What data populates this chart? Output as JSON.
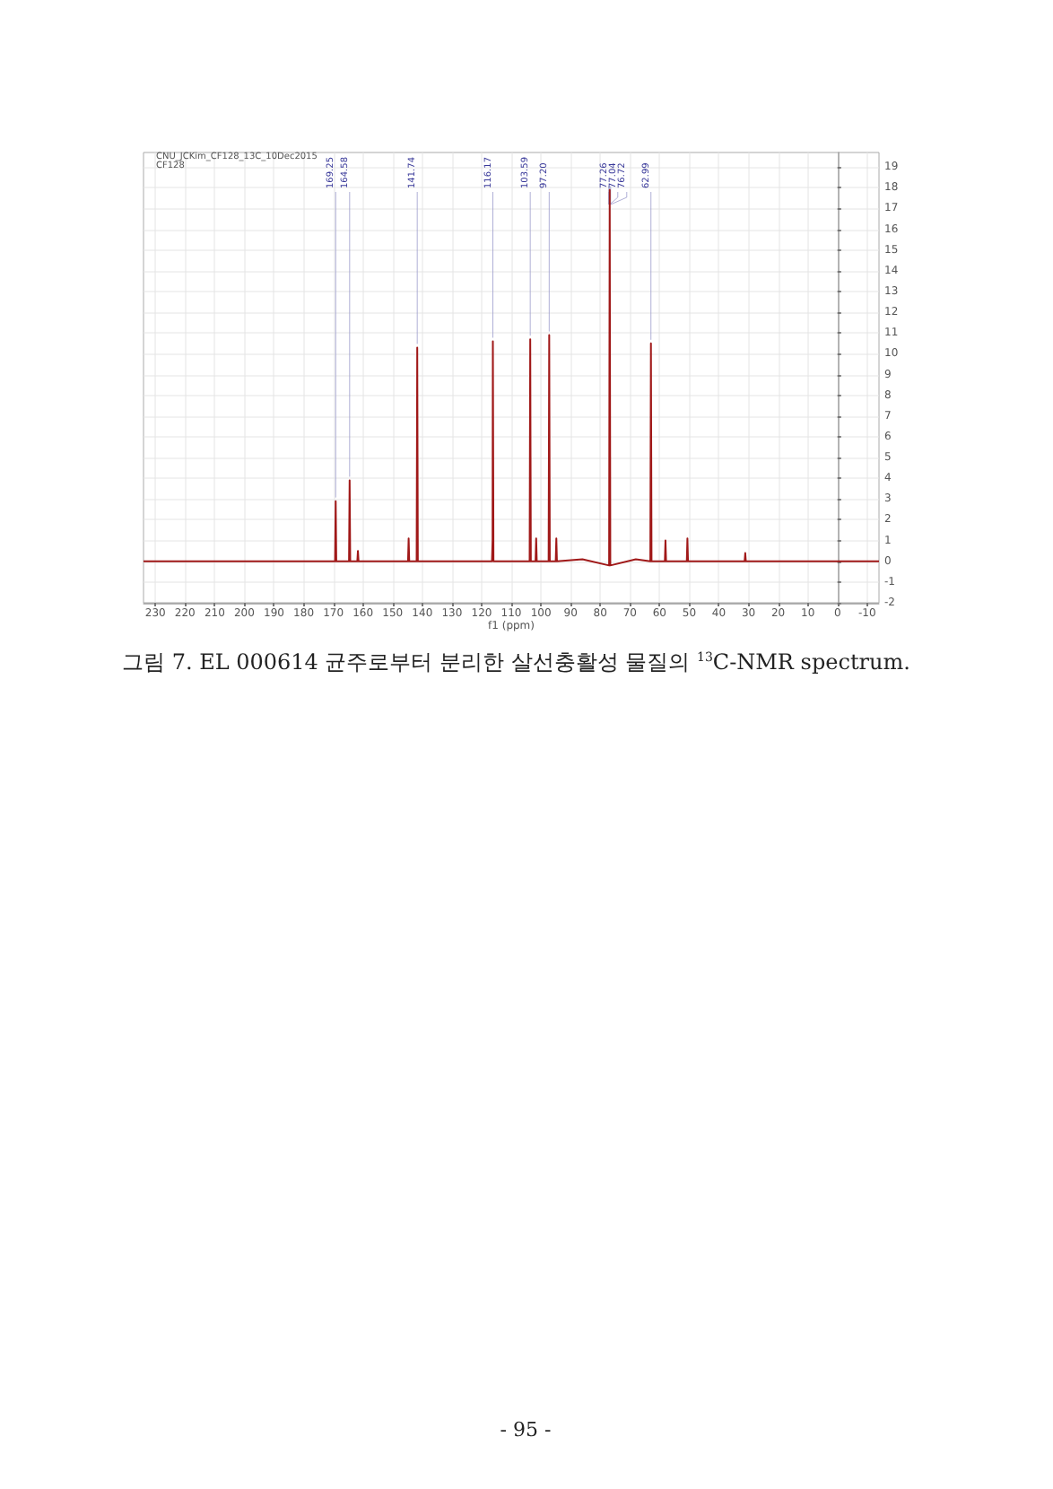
{
  "chart_data": {
    "type": "line",
    "title": "CNU_JCKim_CF128_13C_10Dec2015",
    "subtitle": "CF128",
    "xlabel": "f1 (ppm)",
    "annotations": [
      {
        "text": "169.25",
        "x": 169.2,
        "y": 2.9
      },
      {
        "text": "164.58",
        "x": 164.5,
        "y": 3.9
      },
      {
        "text": "141.74",
        "x": 141.7,
        "y": 10.3
      },
      {
        "text": "116.17",
        "x": 116.2,
        "y": 10.6
      },
      {
        "text": "103.59",
        "x": 103.6,
        "y": 10.7
      },
      {
        "text": "97.20",
        "x": 97.2,
        "y": 10.9
      },
      {
        "text": "77.26",
        "x": 77.1,
        "y": 17.9
      },
      {
        "text": "77.04",
        "x": 76.8,
        "y": 17.9
      },
      {
        "text": "76.72",
        "x": 76.5,
        "y": 17.9
      },
      {
        "text": "62.99",
        "x": 62.9,
        "y": 10.5
      },
      "그림 7. EL 000614 균주로부터 분리한 살선충활성 물질의 $^{13}$C-NMR spectrum.",
      "- 95 -"
    ],
    "x": [
      234,
      200,
      169.4,
      169.2,
      169.0,
      164.7,
      164.5,
      164.3,
      161.9,
      161.7,
      161.5,
      144.8,
      144.6,
      144.4,
      141.9,
      141.7,
      141.5,
      116.5,
      116.3,
      116.2,
      116.0,
      103.8,
      103.6,
      103.4,
      101.8,
      101.6,
      101.4,
      97.4,
      97.2,
      97.0,
      95.0,
      94.8,
      94.6,
      86,
      77.0,
      76.8,
      76.6,
      68,
      63.1,
      62.9,
      62.7,
      58.2,
      58.0,
      57.8,
      50.8,
      50.6,
      50.4,
      31.3,
      31.1,
      30.9,
      -14
    ],
    "series": [
      {
        "color": "#a01818",
        "values": [
          0,
          0,
          0,
          2.9,
          0,
          0,
          3.9,
          0,
          0,
          0.5,
          0,
          0,
          1.1,
          0,
          0,
          10.3,
          0,
          0,
          1.0,
          10.6,
          0,
          0,
          10.7,
          0,
          0,
          1.1,
          0,
          0,
          10.9,
          0,
          0,
          1.1,
          0,
          0.1,
          -0.2,
          17.9,
          -0.2,
          0.1,
          0,
          10.5,
          0,
          0,
          1.0,
          0,
          0,
          1.1,
          0,
          0,
          0.4,
          0,
          0
        ]
      }
    ],
    "xlim": [
      234,
      -14
    ],
    "xticks": [
      230,
      220,
      210,
      200,
      190,
      180,
      170,
      160,
      150,
      140,
      130,
      120,
      110,
      100,
      90,
      80,
      70,
      60,
      50,
      40,
      30,
      20,
      10,
      0,
      -10
    ],
    "ylim": [
      -2,
      19.7
    ],
    "yticks": [
      -2,
      -1,
      0,
      1,
      2,
      3,
      4,
      5,
      6,
      7,
      8,
      9,
      10,
      11,
      12,
      13,
      14,
      15,
      16,
      17,
      18,
      19
    ],
    "grid": true,
    "marker": "none",
    "line_style": "solid"
  }
}
